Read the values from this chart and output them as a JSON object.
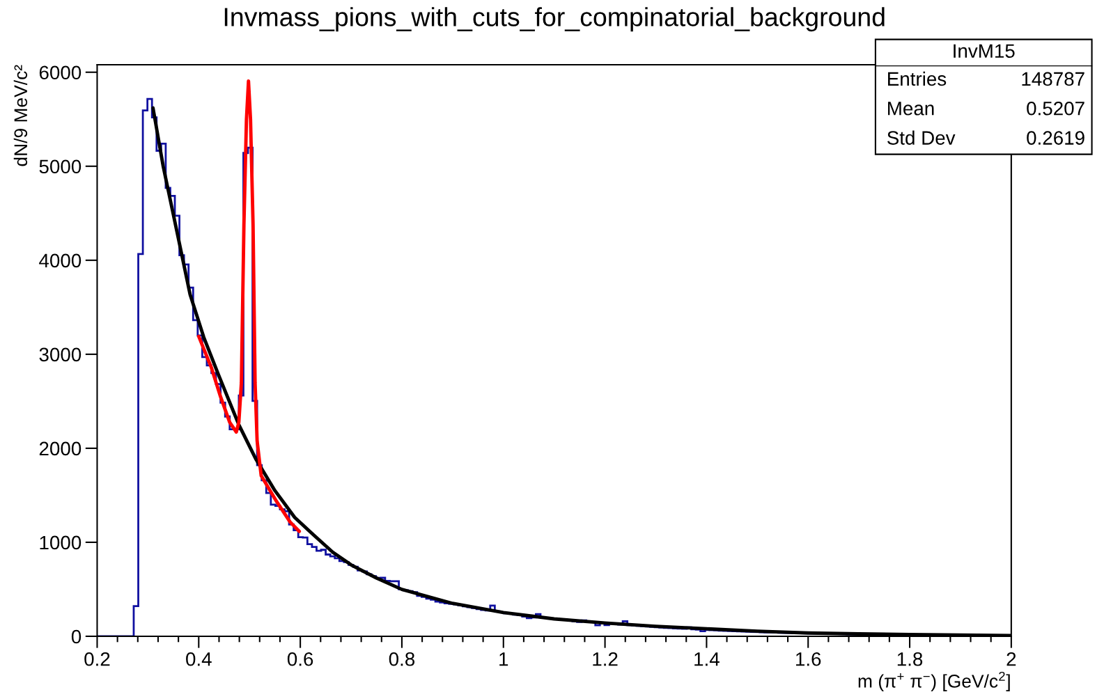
{
  "chart_data": {
    "type": "histogram",
    "title": "Invmass_pions_with_cuts_for_compinatorial_background",
    "xlabel": "m (π$^{+}$ π$^{−}$) [GeV/c$^{2}$]",
    "ylabel": "dN/9 MeV/c²",
    "xlim": [
      0.2,
      2
    ],
    "ylim": [
      0,
      6080
    ],
    "xticks": [
      {
        "value": 0.2,
        "label": "0.2"
      },
      {
        "value": 0.4,
        "label": "0.4"
      },
      {
        "value": 0.6,
        "label": "0.6"
      },
      {
        "value": 0.8,
        "label": "0.8"
      },
      {
        "value": 1,
        "label": "1"
      },
      {
        "value": 1.2,
        "label": "1.2"
      },
      {
        "value": 1.4,
        "label": "1.4"
      },
      {
        "value": 1.6,
        "label": "1.6"
      },
      {
        "value": 1.8,
        "label": "1.8"
      },
      {
        "value": 2,
        "label": "2"
      }
    ],
    "yticks": [
      0,
      1000,
      2000,
      3000,
      4000,
      5000,
      6000
    ],
    "grid": false,
    "annotations": [
      "InvM15",
      "Entries",
      "148787",
      "Mean",
      "0.5207",
      "Std Dev",
      "0.2619"
    ],
    "series": [
      {
        "color": "#1010a0",
        "bins": [
          0.2,
          0.209,
          0.218,
          0.227,
          0.236,
          0.245,
          0.254,
          0.263,
          0.272,
          0.281,
          0.29,
          0.299,
          0.308,
          0.317,
          0.326,
          0.335,
          0.344,
          0.353,
          0.362,
          0.371,
          0.38,
          0.389,
          0.398,
          0.407,
          0.416,
          0.425,
          0.434,
          0.443,
          0.452,
          0.461,
          0.47,
          0.479,
          0.488,
          0.497,
          0.506,
          0.515,
          0.524,
          0.533,
          0.542,
          0.551,
          0.56,
          0.569,
          0.578,
          0.587,
          0.596,
          0.605,
          0.614,
          0.623,
          0.632,
          0.641,
          0.65,
          0.659,
          0.668,
          0.677,
          0.686,
          0.695,
          0.704,
          0.713,
          0.722,
          0.731,
          0.74,
          0.749,
          0.758,
          0.767,
          0.776,
          0.785,
          0.794,
          0.803,
          0.812,
          0.821,
          0.83,
          0.839,
          0.848,
          0.857,
          0.866,
          0.875,
          0.884,
          0.893,
          0.902,
          0.911,
          0.92,
          0.929,
          0.938,
          0.947,
          0.956,
          0.965,
          0.974,
          0.983,
          0.992,
          1.001,
          1.01,
          1.019,
          1.028,
          1.037,
          1.046,
          1.055,
          1.064,
          1.073,
          1.082,
          1.091,
          1.1,
          1.109,
          1.118,
          1.127,
          1.136,
          1.145,
          1.154,
          1.163,
          1.172,
          1.181,
          1.19,
          1.199,
          1.208,
          1.217,
          1.226,
          1.235,
          1.244,
          1.253,
          1.262,
          1.271,
          1.28,
          1.289,
          1.298,
          1.307,
          1.316,
          1.325,
          1.334,
          1.343,
          1.352,
          1.361,
          1.37,
          1.379,
          1.388,
          1.397,
          1.406,
          1.415,
          1.424,
          1.433,
          1.442,
          1.451,
          1.46,
          1.469,
          1.478,
          1.487,
          1.496,
          1.505,
          1.514,
          1.523,
          1.532,
          1.541,
          1.55,
          1.559,
          1.568,
          1.577,
          1.586,
          1.595,
          1.604,
          1.613,
          1.622,
          1.631,
          1.64,
          1.649,
          1.658,
          1.667,
          1.676,
          1.685,
          1.694,
          1.703,
          1.712,
          1.721,
          1.73,
          1.739,
          1.748,
          1.757,
          1.766,
          1.775,
          1.784,
          1.793,
          1.802,
          1.811,
          1.82,
          1.829,
          1.838,
          1.847,
          1.856,
          1.865,
          1.874,
          1.883,
          1.892,
          1.901,
          1.91,
          1.919,
          1.928,
          1.937,
          1.946,
          1.955,
          1.964,
          1.973,
          1.982,
          1.991,
          2.0
        ],
        "values": [
          0,
          0,
          0,
          0,
          0,
          0,
          0,
          0,
          321,
          4067,
          5593,
          5716,
          5519,
          5165,
          5240,
          4770,
          4684,
          4474,
          4054,
          3956,
          3709,
          3363,
          3200,
          2970,
          2881,
          2800,
          2684,
          2486,
          2338,
          2202,
          2202,
          2561,
          5141,
          5198,
          2504,
          1820,
          1659,
          1524,
          1400,
          1388,
          1350,
          1330,
          1190,
          1128,
          1054,
          1050,
          980,
          950,
          910,
          920,
          870,
          850,
          830,
          800,
          790,
          760,
          740,
          700,
          690,
          660,
          640,
          620,
          622,
          590,
          585,
          585,
          500,
          489,
          480,
          470,
          430,
          420,
          400,
          390,
          370,
          360,
          350,
          345,
          340,
          330,
          320,
          310,
          300,
          290,
          280,
          275,
          326,
          265,
          255,
          245,
          240,
          230,
          225,
          210,
          193,
          200,
          235,
          200,
          195,
          190,
          185,
          180,
          175,
          170,
          160,
          153,
          170,
          160,
          150,
          118,
          140,
          120,
          135,
          130,
          125,
          160,
          120,
          115,
          112,
          108,
          105,
          100,
          97,
          94,
          90,
          88,
          85,
          82,
          80,
          95,
          75,
          72,
          55,
          68,
          66,
          63,
          61,
          59,
          57,
          55,
          53,
          51,
          49,
          47,
          46,
          44,
          42,
          41,
          40,
          38,
          37,
          36,
          34,
          33,
          32,
          31,
          30,
          29,
          28,
          27,
          26,
          25,
          24,
          23,
          22,
          22,
          21,
          20,
          19,
          19,
          18,
          17,
          17,
          16,
          15,
          15,
          14,
          14,
          13,
          13,
          12,
          12,
          11,
          11,
          10,
          10,
          10,
          9,
          9,
          9,
          8,
          8,
          8,
          7,
          7,
          7,
          7,
          6,
          6,
          6
        ]
      },
      {
        "type": "line",
        "color": "#000000",
        "x": [
          0.31,
          0.33,
          0.36,
          0.383,
          0.41,
          0.438,
          0.479,
          0.513,
          0.55,
          0.589,
          0.626,
          0.664,
          0.7,
          0.75,
          0.8,
          0.9,
          1.0,
          1.1,
          1.2,
          1.3,
          1.4,
          1.5,
          1.6,
          1.7,
          1.8,
          1.9,
          2.0
        ],
        "values": [
          5620,
          5000,
          4230,
          3635,
          3180,
          2795,
          2250,
          1880,
          1550,
          1264,
          1079,
          894,
          760,
          620,
          499,
          350,
          252,
          185,
          141,
          106,
          80,
          55,
          35,
          26,
          19,
          13,
          8
        ]
      },
      {
        "type": "line",
        "color": "#ff0000",
        "x": [
          0.4,
          0.425,
          0.443,
          0.461,
          0.474,
          0.479,
          0.484,
          0.489,
          0.494,
          0.498,
          0.502,
          0.507,
          0.511,
          0.515,
          0.523,
          0.553,
          0.58,
          0.598
        ],
        "values": [
          3190,
          2857,
          2548,
          2276,
          2173,
          2276,
          2696,
          4376,
          5500,
          5906,
          5500,
          4376,
          2696,
          2079,
          1709,
          1437,
          1215,
          1116
        ]
      }
    ]
  }
}
